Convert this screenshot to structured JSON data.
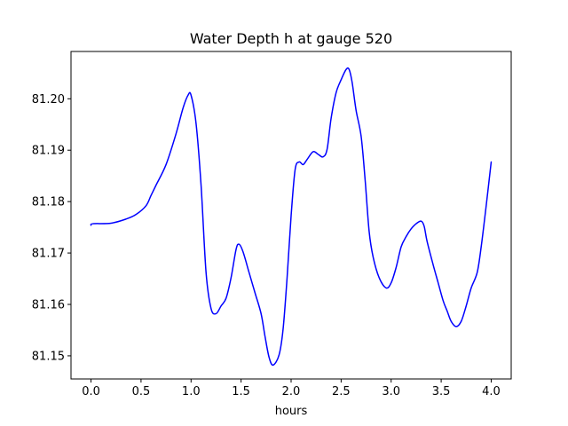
{
  "chart_data": {
    "type": "line",
    "title": "Water Depth h at gauge 520",
    "xlabel": "hours",
    "ylabel": "",
    "xlim": [
      -0.2,
      4.2
    ],
    "ylim": [
      81.1455,
      81.2092
    ],
    "xticks": [
      "0.0",
      "0.5",
      "1.0",
      "1.5",
      "2.0",
      "2.5",
      "3.0",
      "3.5",
      "4.0"
    ],
    "yticks": [
      "81.15",
      "81.16",
      "81.17",
      "81.18",
      "81.19",
      "81.20"
    ],
    "grid": false,
    "legend": "none",
    "series": [
      {
        "color": "#0000ff",
        "x": [
          0.0,
          0.02,
          0.2,
          0.35,
          0.45,
          0.55,
          0.6,
          0.65,
          0.75,
          0.85,
          0.92,
          0.97,
          1.0,
          1.05,
          1.1,
          1.15,
          1.2,
          1.25,
          1.3,
          1.35,
          1.4,
          1.45,
          1.48,
          1.52,
          1.58,
          1.64,
          1.7,
          1.74,
          1.78,
          1.82,
          1.88,
          1.92,
          1.96,
          2.0,
          2.04,
          2.08,
          2.12,
          2.16,
          2.22,
          2.27,
          2.32,
          2.36,
          2.4,
          2.45,
          2.5,
          2.55,
          2.58,
          2.61,
          2.65,
          2.7,
          2.74,
          2.78,
          2.82,
          2.88,
          2.95,
          3.0,
          3.05,
          3.1,
          3.15,
          3.2,
          3.25,
          3.3,
          3.33,
          3.36,
          3.42,
          3.47,
          3.52,
          3.56,
          3.6,
          3.65,
          3.7,
          3.75,
          3.8,
          3.86,
          3.9,
          3.95,
          4.0
        ],
        "y": [
          81.1754,
          81.1757,
          81.1758,
          81.1766,
          81.1775,
          81.1792,
          81.1812,
          81.1832,
          81.1872,
          81.1932,
          81.1982,
          81.2007,
          81.2007,
          81.1952,
          81.1832,
          81.1662,
          81.1592,
          81.1582,
          81.1597,
          81.1612,
          81.1652,
          81.1707,
          81.1717,
          81.1702,
          81.1662,
          81.1622,
          81.1582,
          81.1537,
          81.1497,
          81.1482,
          81.1502,
          81.1552,
          81.1652,
          81.1772,
          81.1862,
          81.1877,
          81.1872,
          81.1882,
          81.1897,
          81.1892,
          81.1887,
          81.1902,
          81.1962,
          81.2012,
          81.2037,
          81.2057,
          81.2057,
          81.2032,
          81.1977,
          81.1927,
          81.1842,
          81.1742,
          81.1692,
          81.1652,
          81.1632,
          81.1642,
          81.1672,
          81.1712,
          81.1732,
          81.1747,
          81.1757,
          81.1762,
          81.1752,
          81.1722,
          81.1677,
          81.1642,
          81.1607,
          81.1587,
          81.1567,
          81.1557,
          81.1567,
          81.1597,
          81.1632,
          81.1662,
          81.1712,
          81.1792,
          81.1877
        ]
      }
    ]
  }
}
